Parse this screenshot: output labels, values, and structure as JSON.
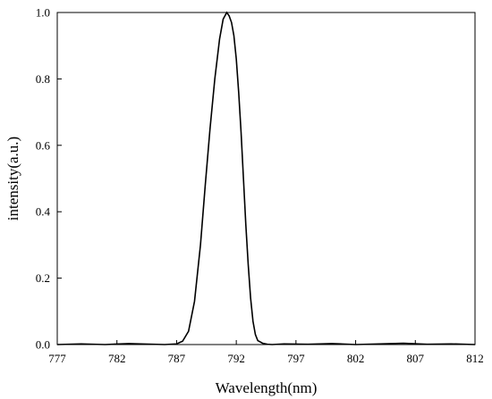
{
  "chart_data": {
    "type": "line",
    "title": "",
    "xlabel": "Wavelength(nm)",
    "ylabel": "intensity(a.u.)",
    "xlim": [
      777,
      812
    ],
    "ylim": [
      0,
      1.0
    ],
    "x_ticks": [
      777,
      782,
      787,
      792,
      797,
      802,
      807,
      812
    ],
    "y_ticks": [
      0.0,
      0.2,
      0.4,
      0.6,
      0.8,
      1.0
    ],
    "x_tick_labels": [
      "777",
      "782",
      "787",
      "792",
      "797",
      "802",
      "807",
      "812"
    ],
    "y_tick_labels": [
      "0.0",
      "0.2",
      "0.4",
      "0.6",
      "0.8",
      "1.0"
    ],
    "grid": false,
    "legend": "none",
    "line_color": "#000000",
    "series": [
      {
        "x": [
          777,
          779,
          781,
          783,
          785,
          786,
          787,
          787.5,
          788,
          788.5,
          789,
          789.4,
          789.8,
          790.2,
          790.6,
          790.9,
          791.2,
          791.4,
          791.6,
          791.8,
          792,
          792.2,
          792.4,
          792.6,
          792.8,
          793,
          793.2,
          793.4,
          793.6,
          793.8,
          794.2,
          794.6,
          795,
          796,
          798,
          800,
          802,
          804,
          806,
          808,
          810,
          812
        ],
        "y": [
          0.0,
          0.002,
          0.0,
          0.003,
          0.001,
          0.0,
          0.002,
          0.01,
          0.04,
          0.13,
          0.3,
          0.48,
          0.65,
          0.8,
          0.92,
          0.98,
          1.0,
          0.99,
          0.97,
          0.93,
          0.86,
          0.76,
          0.64,
          0.5,
          0.36,
          0.24,
          0.14,
          0.07,
          0.03,
          0.012,
          0.004,
          0.001,
          0.0,
          0.002,
          0.001,
          0.003,
          0.0,
          0.002,
          0.004,
          0.001,
          0.002,
          0.0
        ]
      }
    ]
  }
}
